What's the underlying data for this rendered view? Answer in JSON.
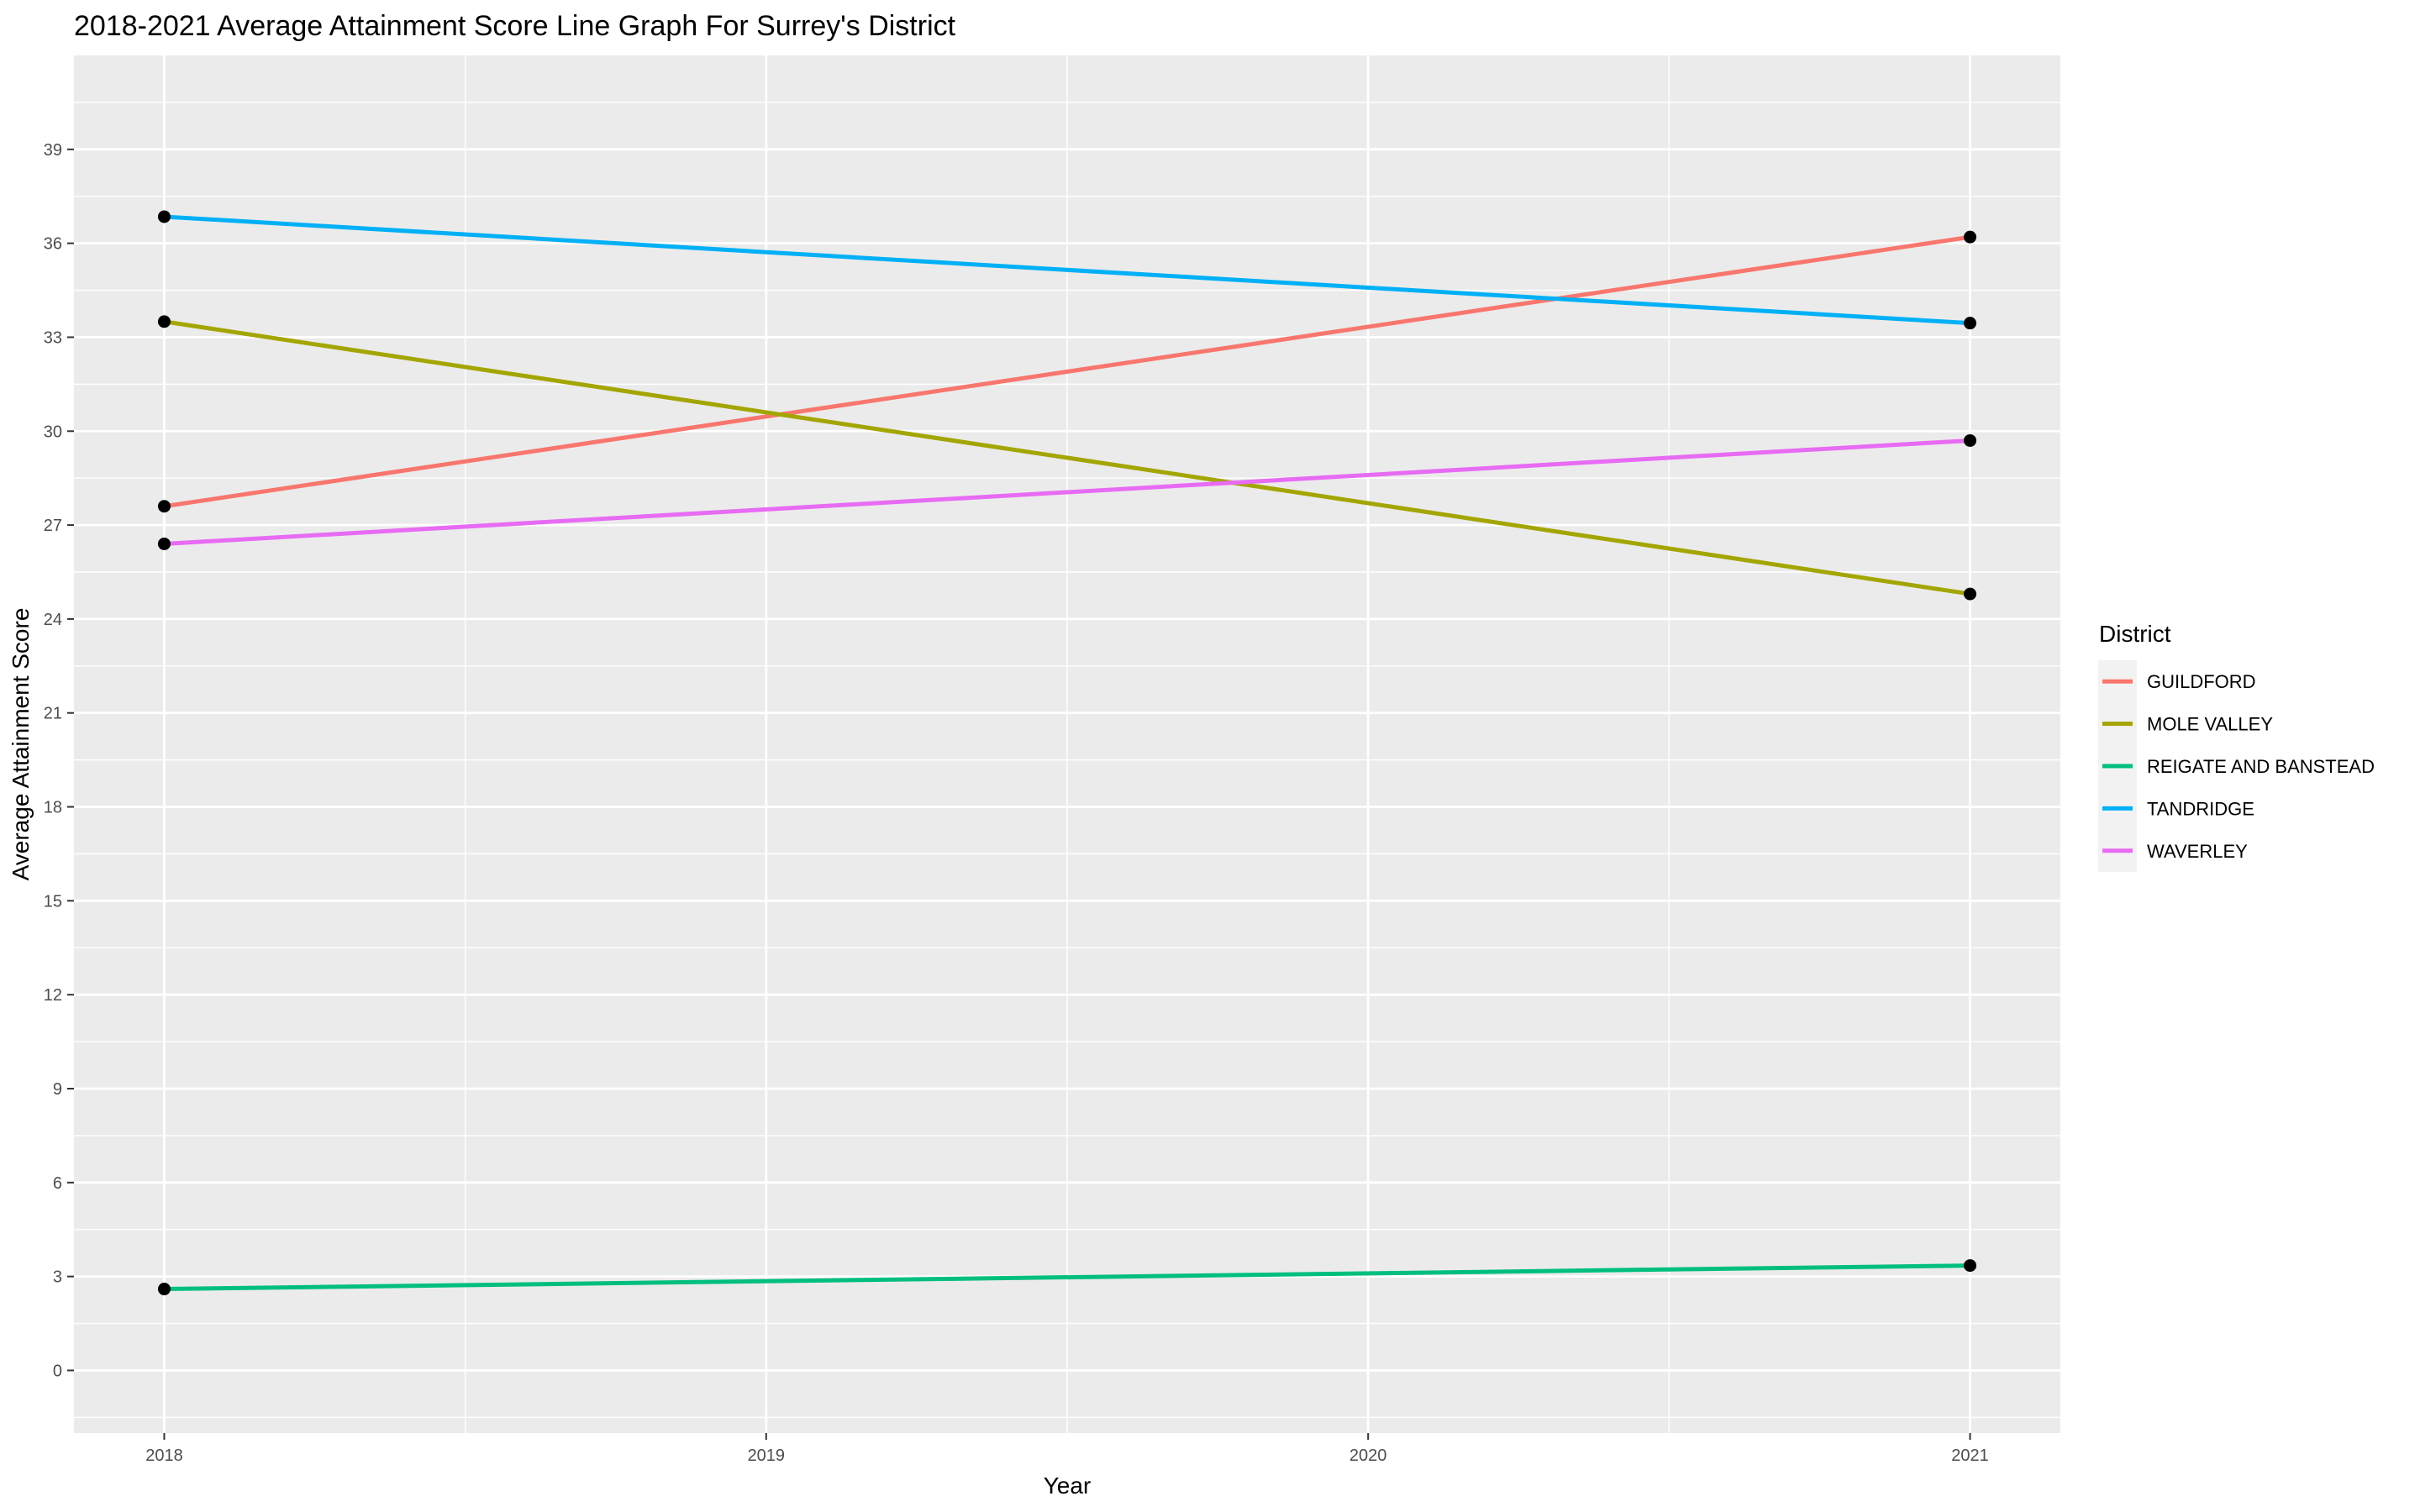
{
  "chart_data": {
    "type": "line",
    "title": "2018-2021 Average Attainment Score Line Graph For Surrey's District",
    "xlabel": "Year",
    "ylabel": "Average Attainment Score",
    "x_ticks": [
      "2018",
      "2019",
      "2020",
      "2021"
    ],
    "y_ticks": [
      "0",
      "3",
      "6",
      "9",
      "12",
      "15",
      "18",
      "21",
      "24",
      "27",
      "30",
      "33",
      "36",
      "39"
    ],
    "xlim": [
      2017.85,
      2021.15
    ],
    "ylim": [
      -2.0,
      42.0
    ],
    "grid": true,
    "legend": {
      "title": "District",
      "position": "right"
    },
    "series": [
      {
        "name": "GUILDFORD",
        "color": "#F8766D",
        "x": [
          2018,
          2021
        ],
        "y": [
          27.6,
          36.2
        ]
      },
      {
        "name": "MOLE VALLEY",
        "color": "#A3A500",
        "x": [
          2018,
          2021
        ],
        "y": [
          33.5,
          24.8
        ]
      },
      {
        "name": "REIGATE AND BANSTEAD",
        "color": "#00BF7D",
        "x": [
          2018,
          2021
        ],
        "y": [
          2.6,
          3.35
        ]
      },
      {
        "name": "TANDRIDGE",
        "color": "#00B0F6",
        "x": [
          2018,
          2021
        ],
        "y": [
          36.85,
          33.45
        ]
      },
      {
        "name": "WAVERLEY",
        "color": "#E76BF3",
        "x": [
          2018,
          2021
        ],
        "y": [
          26.4,
          29.7
        ]
      }
    ]
  }
}
